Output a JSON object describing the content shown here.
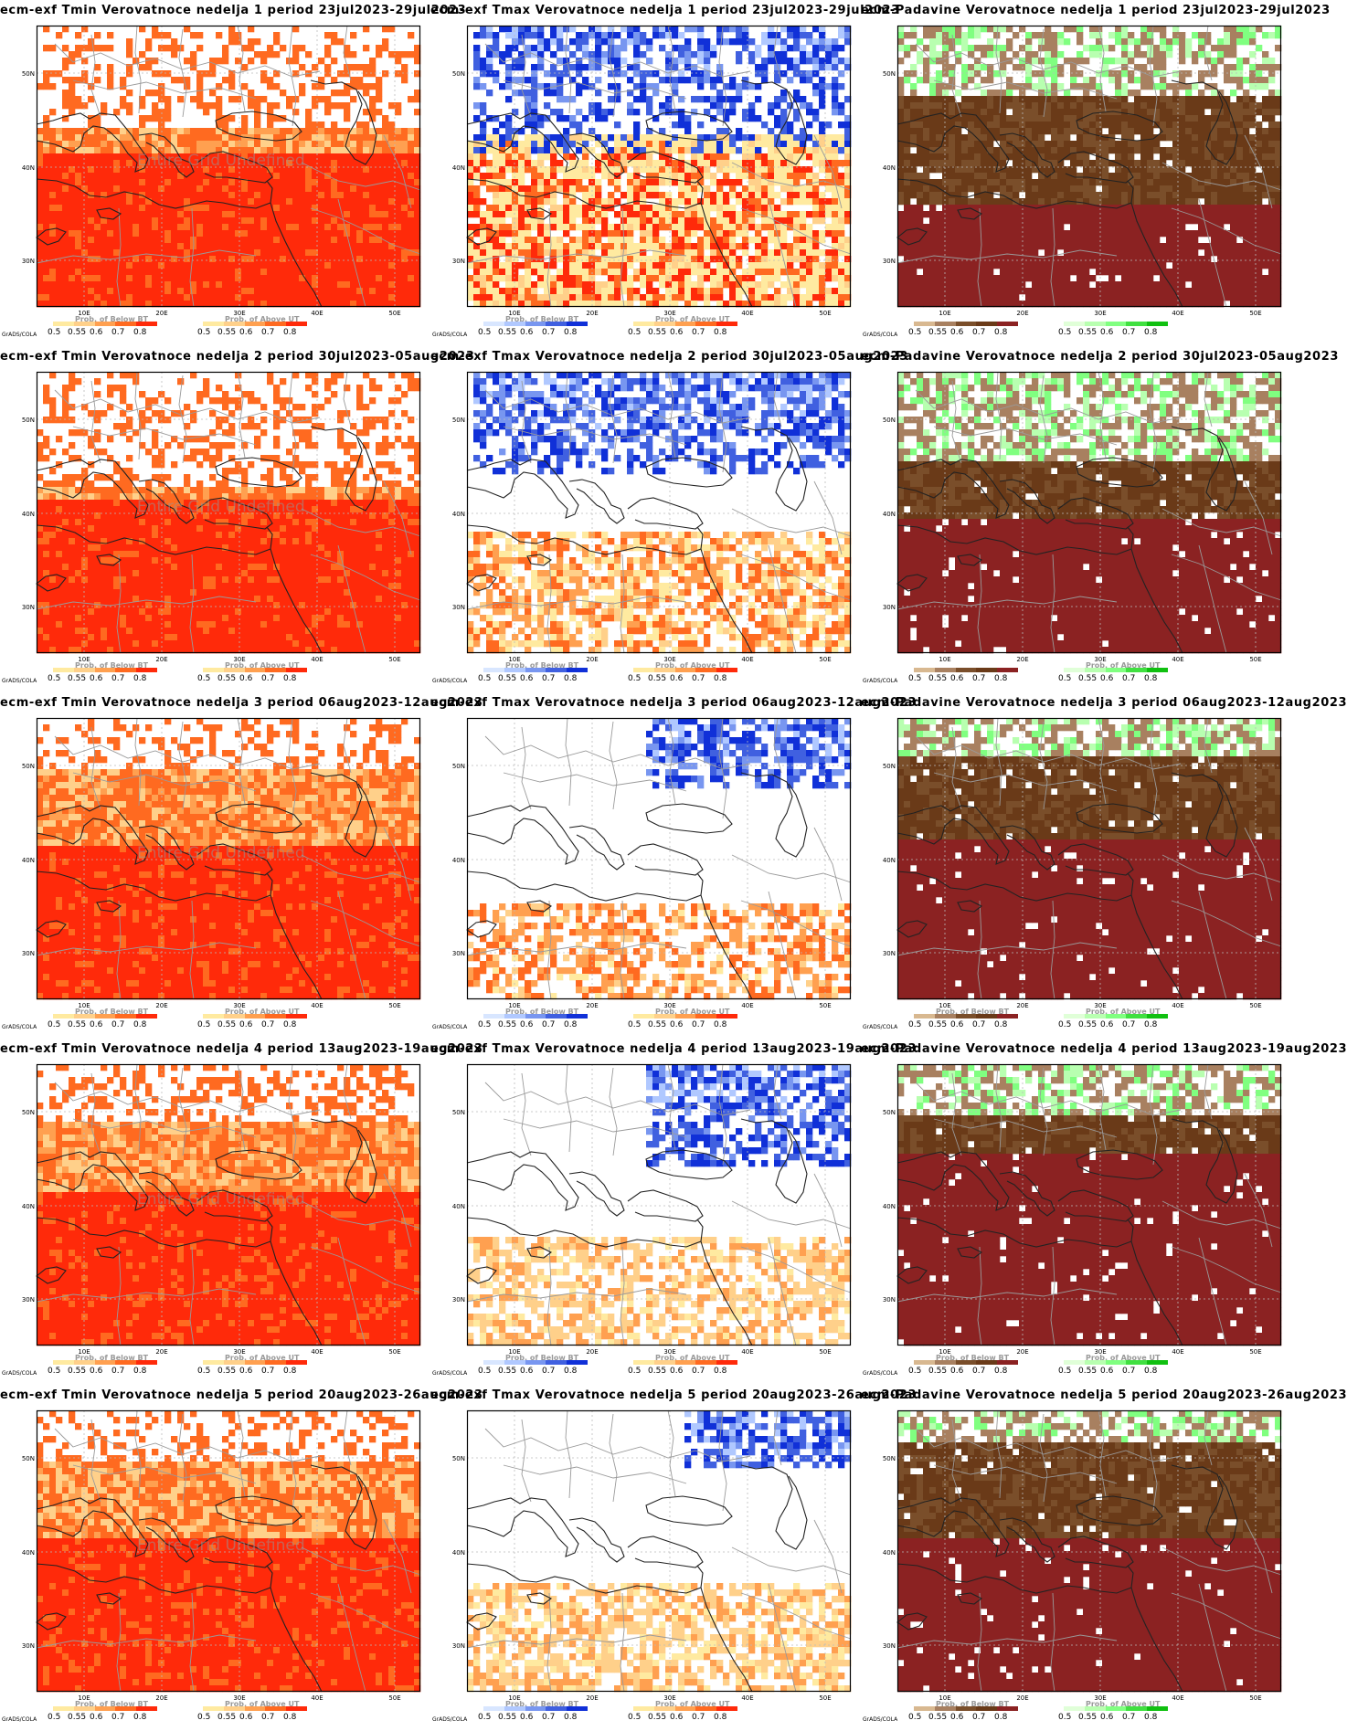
{
  "lat_ticks": [
    "50N",
    "40N",
    "30N"
  ],
  "lon_ticks": [
    "10E",
    "20E",
    "30E",
    "40E",
    "50E"
  ],
  "grads_label": "GrADS/COLA",
  "watermark": "Entire Grid Undefined",
  "legend_ticks_left": [
    "0.5",
    "0.55",
    "0.6",
    "0.7",
    "0.8"
  ],
  "legend_ticks_right": [
    "0.5",
    "0.55",
    "0.6",
    "0.7",
    "0.8"
  ],
  "colors": {
    "warm": [
      "#ffeaa0",
      "#ffd08a",
      "#ffa050",
      "#ff6a20",
      "#ff2a0a"
    ],
    "cold": [
      "#d8e6ff",
      "#b0c8ff",
      "#7896f0",
      "#4060e0",
      "#1030d8"
    ],
    "dry": [
      "#d8b890",
      "#a88060",
      "#7a4e2a",
      "#6a3a18",
      "#8b2222"
    ],
    "wet": [
      "#e0ffd8",
      "#b8ffb0",
      "#80ff80",
      "#40e040",
      "#10c010"
    ]
  },
  "panels": [
    {
      "title": "ecm-exf Tmin Verovatnoce nedelja 1 period 23jul2023-29jul2023",
      "legend_left": "Prob. of Below BT",
      "legend_right": "Prob. of Above UT",
      "left_palette": "warm",
      "right_palette": "warm",
      "watermark_shown": true
    },
    {
      "title": "ecm-exf Tmax Verovatnoce nedelja 1 period 23jul2023-29jul2023",
      "legend_left": "Prob. of Below BT",
      "legend_right": "Prob. of Above UT",
      "left_palette": "cold",
      "right_palette": "warm",
      "watermark_shown": false
    },
    {
      "title": "ecm-Padavine Verovatnoce nedelja 1 period 23jul2023-29jul2023",
      "legend_left": "",
      "legend_right": "",
      "left_palette": "dry",
      "right_palette": "wet",
      "watermark_shown": false
    },
    {
      "title": "ecm-exf Tmin Verovatnoce nedelja 2 period 30jul2023-05aug2023",
      "legend_left": "Prob. of Below BT",
      "legend_right": "Prob. of Above UT",
      "left_palette": "warm",
      "right_palette": "warm",
      "watermark_shown": true
    },
    {
      "title": "ecm-exf Tmax Verovatnoce nedelja 2 period 30jul2023-05aug2023",
      "legend_left": "Prob. of Below BT",
      "legend_right": "Prob. of Above UT",
      "left_palette": "cold",
      "right_palette": "warm",
      "watermark_shown": false
    },
    {
      "title": "ecm-Padavine Verovatnoce nedelja 2 period 30jul2023-05aug2023",
      "legend_left": "",
      "legend_right": "Prob. of Above UT",
      "left_palette": "dry",
      "right_palette": "wet",
      "watermark_shown": false
    },
    {
      "title": "ecm-exf Tmin Verovatnoce nedelja 3 period 06aug2023-12aug2023",
      "legend_left": "Prob. of Below BT",
      "legend_right": "Prob. of Above UT",
      "left_palette": "warm",
      "right_palette": "warm",
      "watermark_shown": true
    },
    {
      "title": "ecm-exf Tmax Verovatnoce nedelja 3 period 06aug2023-12aug2023",
      "legend_left": "Prob. of Below BT",
      "legend_right": "Prob. of Above UT",
      "left_palette": "cold",
      "right_palette": "warm",
      "watermark_shown": false
    },
    {
      "title": "ecm-Padavine Verovatnoce nedelja 3 period 06aug2023-12aug2023",
      "legend_left": "Prob. of Below BT",
      "legend_right": "Prob. of Above UT",
      "left_palette": "dry",
      "right_palette": "wet",
      "watermark_shown": false
    },
    {
      "title": "ecm-exf Tmin Verovatnoce nedelja 4 period 13aug2023-19aug2023",
      "legend_left": "Prob. of Below BT",
      "legend_right": "Prob. of Above UT",
      "left_palette": "warm",
      "right_palette": "warm",
      "watermark_shown": true
    },
    {
      "title": "ecm-exf Tmax Verovatnoce nedelja 4 period 13aug2023-19aug2023",
      "legend_left": "Prob. of Below BT",
      "legend_right": "Prob. of Above UT",
      "left_palette": "cold",
      "right_palette": "warm",
      "watermark_shown": false
    },
    {
      "title": "ecm-Padavine Verovatnoce nedelja 4 period 13aug2023-19aug2023",
      "legend_left": "Prob. of Below BT",
      "legend_right": "Prob. of Above UT",
      "left_palette": "dry",
      "right_palette": "wet",
      "watermark_shown": false
    },
    {
      "title": "ecm-exf Tmin Verovatnoce nedelja 5 period 20aug2023-26aug2023",
      "legend_left": "Prob. of Below BT",
      "legend_right": "Prob. of Above UT",
      "left_palette": "warm",
      "right_palette": "warm",
      "watermark_shown": true
    },
    {
      "title": "ecm-exf Tmax Verovatnoce nedelja 5 period 20aug2023-26aug2023",
      "legend_left": "Prob. of Below BT",
      "legend_right": "Prob. of Above UT",
      "left_palette": "cold",
      "right_palette": "warm",
      "watermark_shown": false
    },
    {
      "title": "ecm-Padavine Verovatnoce nedelja 5 period 20aug2023-26aug2023",
      "legend_left": "Prob. of Below BT",
      "legend_right": "Prob. of Above UT",
      "left_palette": "dry",
      "right_palette": "wet",
      "watermark_shown": false
    }
  ]
}
